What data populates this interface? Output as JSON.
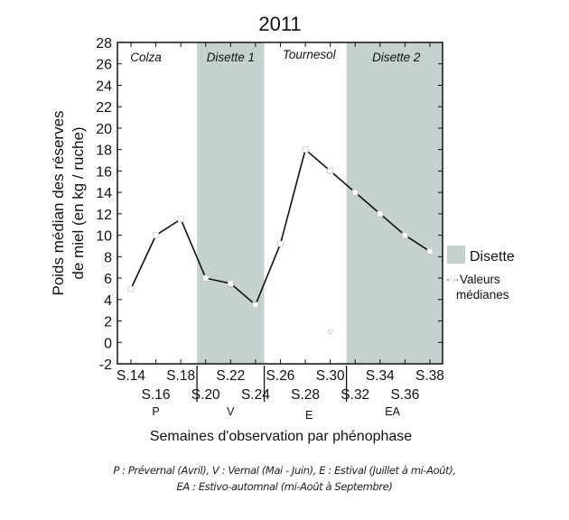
{
  "chart_data": {
    "type": "line",
    "title": "2011",
    "ylabel_line1": "Poids médian des réserves",
    "ylabel_line2": "de miel (en kg / ruche)",
    "xlabel": "Semaines d'observation par phénophase",
    "ylim": [
      -2,
      28
    ],
    "yticks": [
      -2,
      0,
      2,
      4,
      6,
      8,
      10,
      12,
      14,
      16,
      18,
      20,
      22,
      24,
      26,
      28
    ],
    "xlim": [
      13,
      39.5
    ],
    "x_tick_weeks": [
      14,
      16,
      18,
      20,
      22,
      24,
      26,
      28,
      30,
      32,
      34,
      36,
      38
    ],
    "x_tick_labels": [
      {
        "week": 14,
        "label": "S.14",
        "row": 1
      },
      {
        "week": 16,
        "label": "S.16",
        "row": 2
      },
      {
        "week": 18,
        "label": "S.18",
        "row": 1
      },
      {
        "week": 20,
        "label": "S.20",
        "row": 2
      },
      {
        "week": 22,
        "label": "S.22",
        "row": 1
      },
      {
        "week": 24,
        "label": "S.24",
        "row": 2
      },
      {
        "week": 26,
        "label": "S.26",
        "row": 1
      },
      {
        "week": 28,
        "label": "S.28",
        "row": 2
      },
      {
        "week": 30,
        "label": "S.30",
        "row": 1
      },
      {
        "week": 32,
        "label": "S.32",
        "row": 2
      },
      {
        "week": 34,
        "label": "S.34",
        "row": 1
      },
      {
        "week": 36,
        "label": "S.36",
        "row": 2
      },
      {
        "week": 38,
        "label": "S.38",
        "row": 1
      }
    ],
    "phenophase_separators_week": [
      19.3,
      24.7,
      31.3
    ],
    "phenophases": [
      {
        "code": "P",
        "center_week": 16
      },
      {
        "code": "V",
        "center_week": 22
      },
      {
        "code": "E",
        "center_week": 28.3
      },
      {
        "code": "EA",
        "center_week": 35
      }
    ],
    "shaded_regions": [
      {
        "label": "Disette 1",
        "from_week": 19.3,
        "to_week": 24.7
      },
      {
        "label": "Disette 2",
        "from_week": 31.3,
        "to_week": 39.5
      }
    ],
    "region_labels": [
      {
        "label": "Colza",
        "center_week": 15.2
      },
      {
        "label": "Disette 1",
        "center_week": 22
      },
      {
        "label": "Tournesol",
        "center_week": 28.3
      },
      {
        "label": "Disette 2",
        "center_week": 35.3
      }
    ],
    "series": [
      {
        "name": "Valeurs médianes",
        "points": [
          {
            "x": 14,
            "y": 5
          },
          {
            "x": 16,
            "y": 10
          },
          {
            "x": 18,
            "y": 11.5
          },
          {
            "x": 20,
            "y": 6
          },
          {
            "x": 22,
            "y": 5.5
          },
          {
            "x": 24,
            "y": 3.5
          },
          {
            "x": 26,
            "y": 9.2
          },
          {
            "x": 28,
            "y": 18
          },
          {
            "x": 30,
            "y": 16
          },
          {
            "x": 32,
            "y": 14
          },
          {
            "x": 34,
            "y": 12
          },
          {
            "x": 36,
            "y": 10
          },
          {
            "x": 38,
            "y": 8.5
          }
        ]
      }
    ],
    "outliers": [
      {
        "x": 30,
        "y": 1
      }
    ],
    "legend": {
      "position": "right",
      "items": [
        {
          "label": "Disette",
          "kind": "swatch"
        },
        {
          "label_line1": "Valeurs",
          "label_line2": "médianes",
          "kind": "line-marker"
        }
      ]
    },
    "grid": false
  },
  "footnote": {
    "line1": "P : Prévernal (Avril), V : Vernal (Mai - Juin), E : Estival (Juillet à mi-Août),",
    "line2": "EA : Estivo-automnal (mi-Août à Septembre)"
  },
  "colors": {
    "shade": "#c5d1cf",
    "line": "#111111",
    "marker_fill": "#ffffff",
    "legend_dash": "#cc2222"
  }
}
